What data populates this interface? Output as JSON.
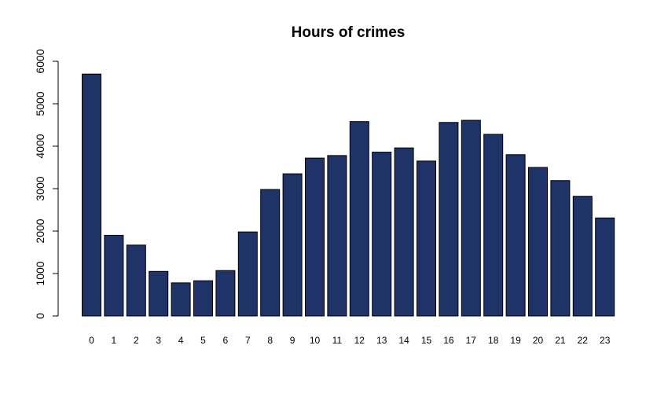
{
  "chart_data": {
    "type": "bar",
    "title": "Hours of crimes",
    "xlabel": "",
    "ylabel": "",
    "categories": [
      "0",
      "1",
      "2",
      "3",
      "4",
      "5",
      "6",
      "7",
      "8",
      "9",
      "10",
      "11",
      "12",
      "13",
      "14",
      "15",
      "16",
      "17",
      "18",
      "19",
      "20",
      "21",
      "22",
      "23"
    ],
    "values": [
      5700,
      1900,
      1670,
      1050,
      780,
      830,
      1070,
      1980,
      2980,
      3350,
      3720,
      3780,
      4580,
      3860,
      3960,
      3650,
      4560,
      4610,
      4280,
      3800,
      3500,
      3190,
      2820,
      2310
    ],
    "yticks": [
      "0",
      "1000",
      "2000",
      "3000",
      "4000",
      "5000",
      "6000"
    ],
    "ylim": [
      0,
      6000
    ],
    "bar_color": "#1f3368",
    "grid": false,
    "legend": "none"
  }
}
